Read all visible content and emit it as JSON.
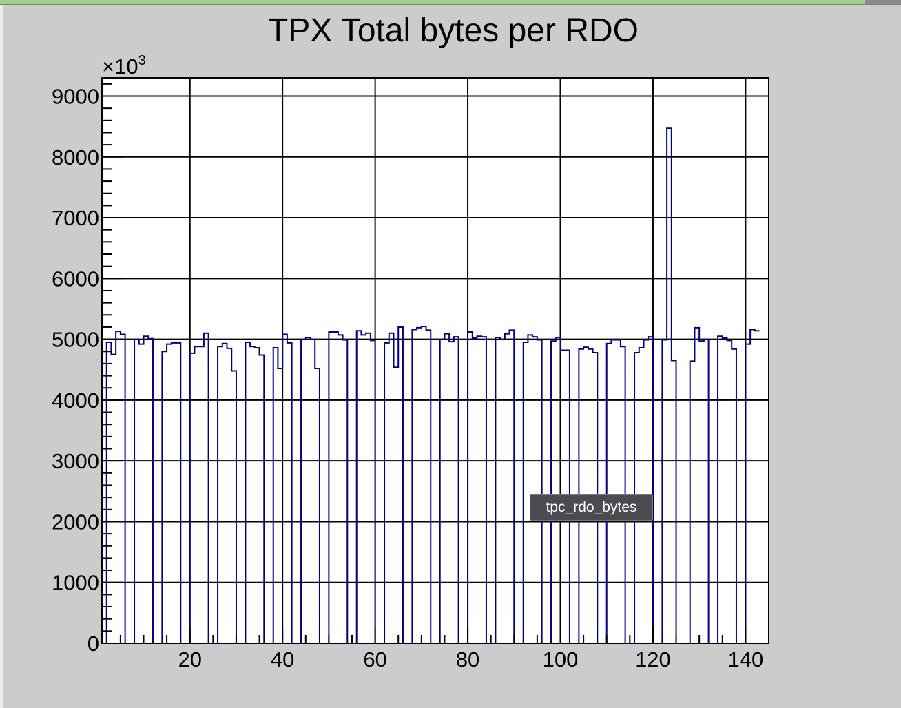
{
  "tooltip": {
    "text": "tpc_rdo_bytes"
  },
  "chart_data": {
    "type": "histogram",
    "title": "TPX Total bytes per RDO",
    "y_multiplier": "×10",
    "y_multiplier_exponent": "3",
    "xlabel": "",
    "ylabel": "",
    "xlim": [
      1,
      145
    ],
    "ylim": [
      0,
      9300
    ],
    "x_ticks": [
      20,
      40,
      60,
      80,
      100,
      120,
      140
    ],
    "y_ticks": [
      0,
      1000,
      2000,
      3000,
      4000,
      5000,
      6000,
      7000,
      8000,
      9000
    ],
    "grid": true,
    "line_color": "#000080",
    "series": [
      {
        "x_start": 1,
        "bin_width": 1,
        "values": [
          0,
          4950,
          4750,
          5130,
          5080,
          0,
          0,
          5000,
          4920,
          5050,
          5010,
          0,
          0,
          4800,
          4920,
          4940,
          4940,
          0,
          0,
          4770,
          4880,
          4880,
          5100,
          0,
          0,
          4880,
          4930,
          4850,
          4480,
          0,
          0,
          4950,
          4880,
          4860,
          4740,
          0,
          0,
          4860,
          4520,
          5080,
          4940,
          0,
          0,
          5000,
          5030,
          5000,
          4520,
          0,
          0,
          5120,
          5120,
          5070,
          4990,
          0,
          0,
          5140,
          5070,
          5100,
          4980,
          0,
          0,
          4940,
          5100,
          4540,
          5200,
          0,
          0,
          5160,
          5190,
          5210,
          5150,
          0,
          0,
          5000,
          5090,
          4960,
          5040,
          0,
          0,
          5120,
          5020,
          5050,
          5040,
          0,
          0,
          5030,
          5000,
          5090,
          5150,
          0,
          0,
          4950,
          5070,
          5040,
          4990,
          0,
          0,
          4970,
          5030,
          4820,
          4820,
          0,
          0,
          4840,
          4870,
          4840,
          4780,
          0,
          0,
          4930,
          4990,
          4990,
          4880,
          0,
          0,
          4780,
          4860,
          4990,
          5040,
          0,
          0,
          4990,
          8470,
          4650,
          0,
          0,
          0,
          4640,
          5190,
          4970,
          5000,
          0,
          0,
          5050,
          5020,
          4980,
          4840,
          0,
          0,
          4920,
          5160,
          5140
        ]
      }
    ]
  }
}
